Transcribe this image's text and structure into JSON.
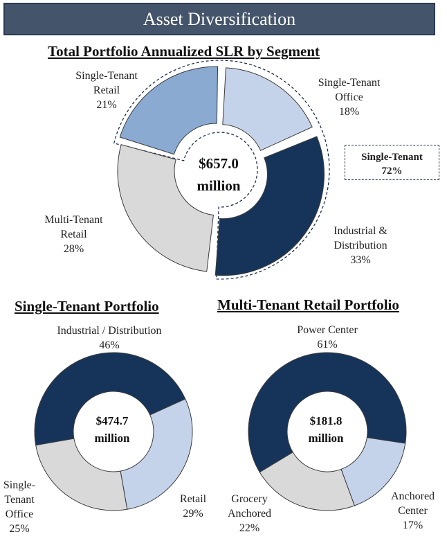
{
  "header": {
    "title": "Asset Diversification"
  },
  "chart_data": [
    {
      "type": "pie",
      "title": "Total Portfolio Annualized SLR by Segment",
      "center_value": "$657.0",
      "center_unit": "million",
      "categories": [
        "Single-Tenant Office",
        "Industrial & Distribution",
        "Multi-Tenant Retail",
        "Single-Tenant Retail"
      ],
      "values": [
        18,
        33,
        28,
        21
      ],
      "label_lines": [
        [
          "Single-Tenant",
          "Office",
          "18%"
        ],
        [
          "Industrial &",
          "Distribution",
          "33%"
        ],
        [
          "Multi-Tenant",
          "Retail",
          "28%"
        ],
        [
          "Single-Tenant",
          "Retail",
          "21%"
        ]
      ],
      "colors": [
        "#c5d3ea",
        "#16345a",
        "#d9d9d9",
        "#8aaad2"
      ],
      "callout": {
        "line1": "Single-Tenant",
        "line2": "72%"
      }
    },
    {
      "type": "pie",
      "title": "Single-Tenant Portfolio",
      "center_value": "$474.7",
      "center_unit": "million",
      "categories": [
        "Industrial / Distribution",
        "Retail",
        "Single-Tenant Office"
      ],
      "values": [
        46,
        29,
        25
      ],
      "label_lines": [
        [
          "Industrial / Distribution",
          "46%"
        ],
        [
          "Retail",
          "29%"
        ],
        [
          "Single-",
          "Tenant",
          "Office",
          "25%"
        ]
      ],
      "colors": [
        "#16345a",
        "#c5d3ea",
        "#d9d9d9"
      ]
    },
    {
      "type": "pie",
      "title": "Multi-Tenant Retail Portfolio",
      "center_value": "$181.8",
      "center_unit": "million",
      "categories": [
        "Power Center",
        "Anchored Center",
        "Grocery Anchored"
      ],
      "values": [
        61,
        17,
        22
      ],
      "label_lines": [
        [
          "Power Center",
          "61%"
        ],
        [
          "Anchored",
          "Center",
          "17%"
        ],
        [
          "Grocery",
          "Anchored",
          "22%"
        ]
      ],
      "colors": [
        "#16345a",
        "#c5d3ea",
        "#d9d9d9"
      ]
    }
  ]
}
